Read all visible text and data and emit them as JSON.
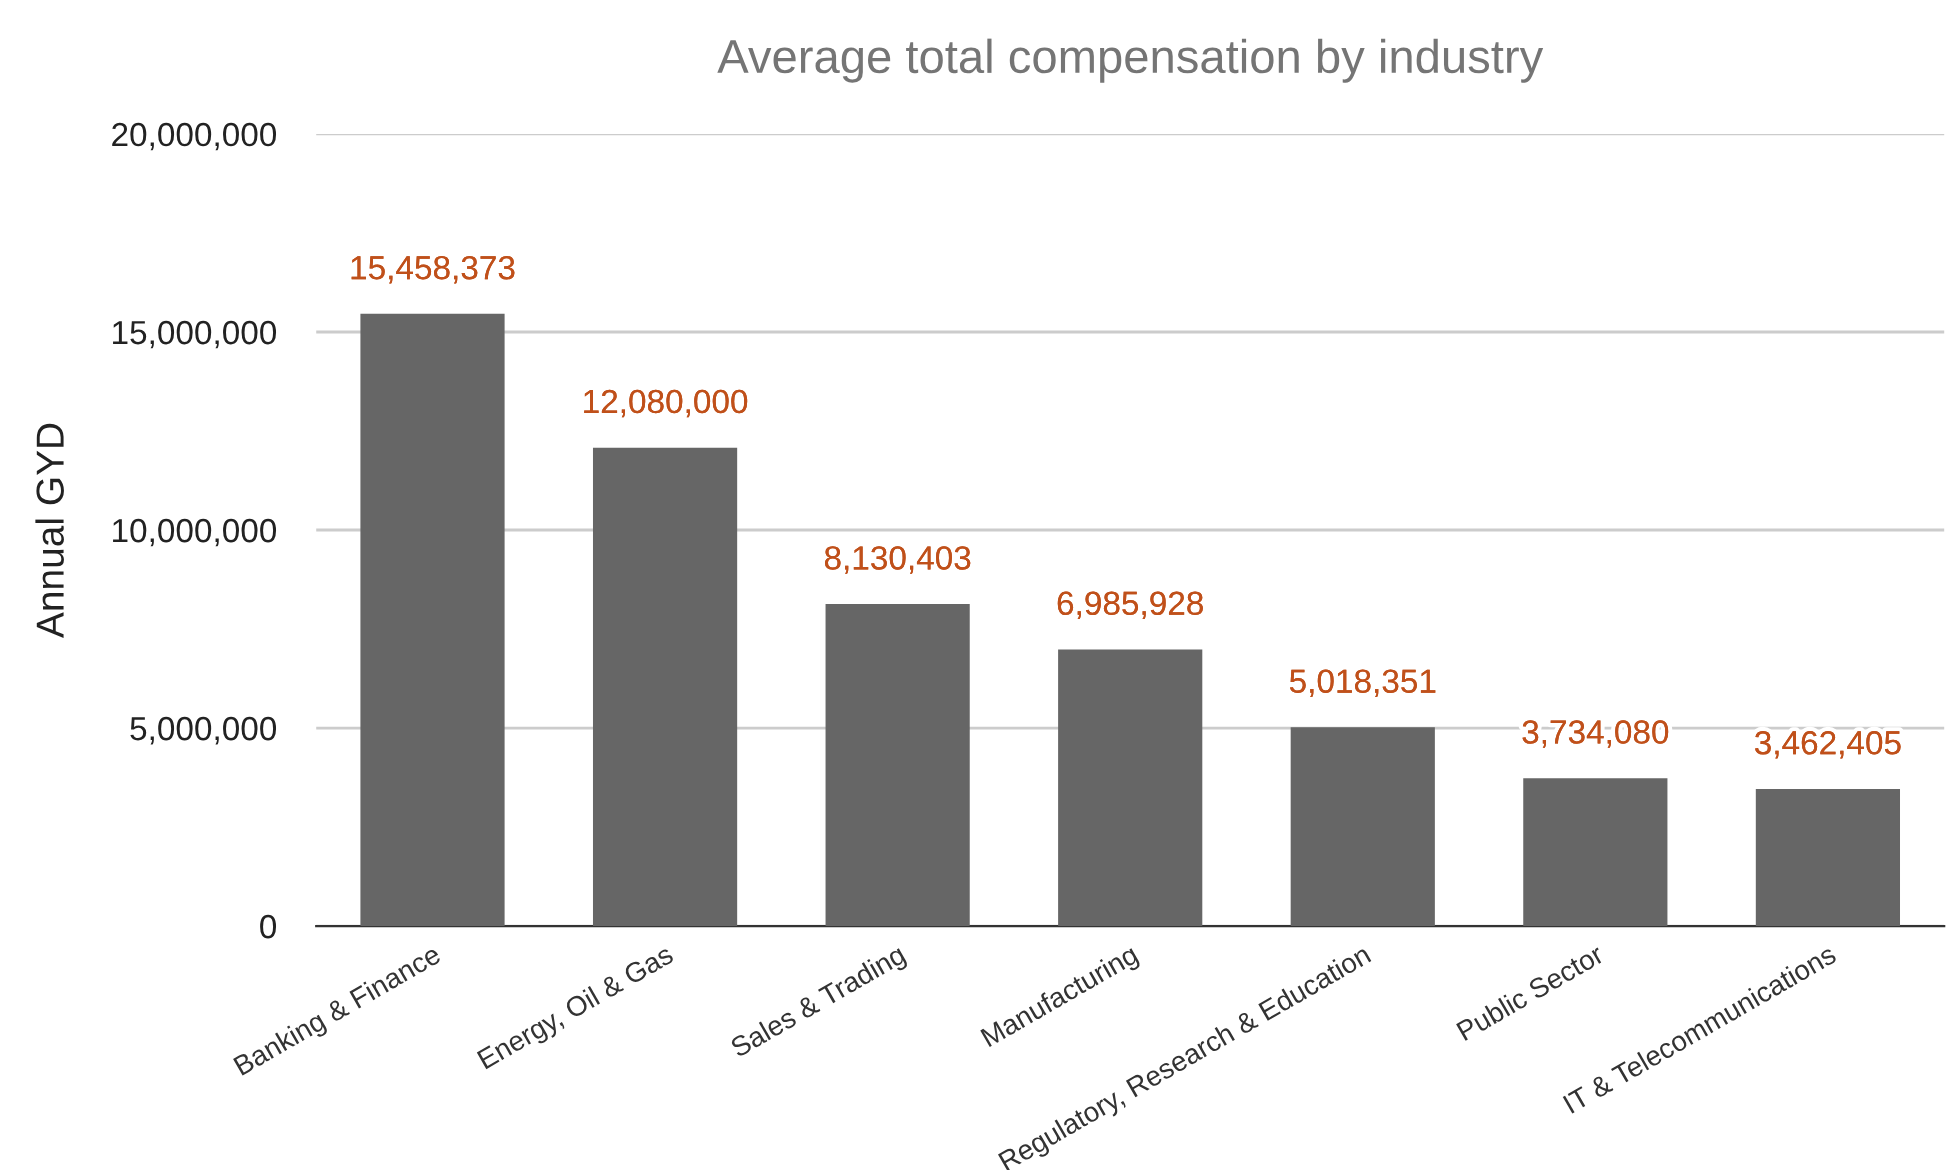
{
  "chart_data": {
    "type": "bar",
    "title": "Average total compensation by industry",
    "ylabel": "Annual GYD",
    "categories": [
      "Banking & Finance",
      "Energy, Oil & Gas",
      "Sales & Trading",
      "Manufacturing",
      "Regulatory, Research & Education",
      "Public Sector",
      "IT & Telecommunications"
    ],
    "values": [
      15458373,
      12080000,
      8130403,
      6985928,
      5018351,
      3734080,
      3462405
    ],
    "value_labels": [
      "15,458,373",
      "12,080,000",
      "8,130,403",
      "6,985,928",
      "5,018,351",
      "3,734,080",
      "3,462,405"
    ],
    "color": "#666666",
    "ylim": [
      0,
      20000000
    ],
    "yticks": [
      {
        "value": 0,
        "label": "0"
      },
      {
        "value": 5000000,
        "label": "5,000,000"
      },
      {
        "value": 10000000,
        "label": "10,000,000"
      },
      {
        "value": 15000000,
        "label": "15,000,000"
      },
      {
        "value": 20000000,
        "label": "20,000,000"
      }
    ],
    "grid": "y",
    "legend": false
  }
}
